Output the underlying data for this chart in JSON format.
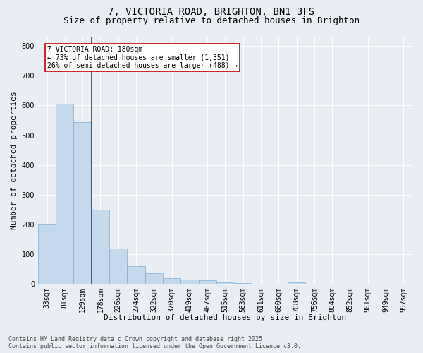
{
  "title_line1": "7, VICTORIA ROAD, BRIGHTON, BN1 3FS",
  "title_line2": "Size of property relative to detached houses in Brighton",
  "xlabel": "Distribution of detached houses by size in Brighton",
  "ylabel": "Number of detached properties",
  "categories": [
    "33sqm",
    "81sqm",
    "129sqm",
    "178sqm",
    "226sqm",
    "274sqm",
    "322sqm",
    "370sqm",
    "419sqm",
    "467sqm",
    "515sqm",
    "563sqm",
    "611sqm",
    "660sqm",
    "708sqm",
    "756sqm",
    "804sqm",
    "852sqm",
    "901sqm",
    "949sqm",
    "997sqm"
  ],
  "bar_values": [
    203,
    606,
    543,
    250,
    120,
    60,
    35,
    20,
    15,
    12,
    5,
    2,
    1,
    0,
    5,
    0,
    0,
    0,
    0,
    0,
    0
  ],
  "bar_color": "#c5d9ec",
  "bar_edge_color": "#7aafd4",
  "vline_x": 2.5,
  "vline_color": "#cc0000",
  "annotation_text": "7 VICTORIA ROAD: 180sqm\n← 73% of detached houses are smaller (1,351)\n26% of semi-detached houses are larger (488) →",
  "annotation_box_color": "#cc0000",
  "ylim": [
    0,
    830
  ],
  "yticks": [
    0,
    100,
    200,
    300,
    400,
    500,
    600,
    700,
    800
  ],
  "footer_line1": "Contains HM Land Registry data © Crown copyright and database right 2025.",
  "footer_line2": "Contains public sector information licensed under the Open Government Licence v3.0.",
  "background_color": "#e8eef4",
  "grid_color": "#ffffff",
  "title_fontsize": 10,
  "subtitle_fontsize": 9,
  "axis_label_fontsize": 8,
  "tick_fontsize": 7,
  "annotation_fontsize": 7,
  "footer_fontsize": 6
}
